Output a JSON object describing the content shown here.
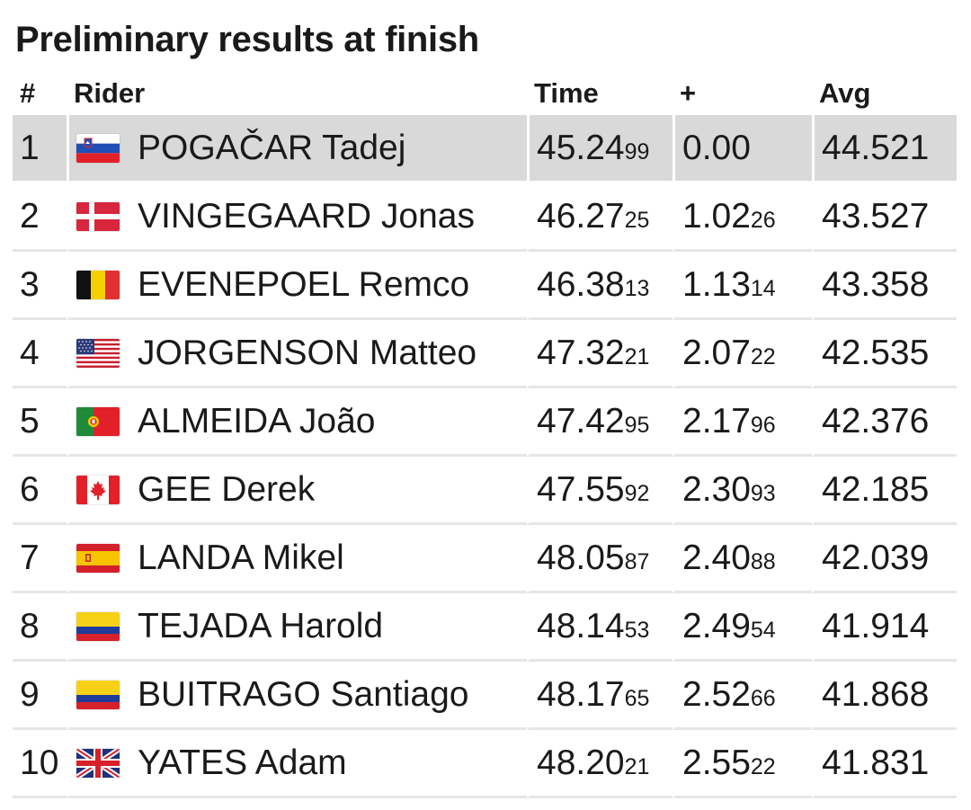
{
  "title": "Preliminary results at finish",
  "columns": {
    "rank": "#",
    "rider": "Rider",
    "time": "Time",
    "gap": "+",
    "avg": "Avg"
  },
  "rows": [
    {
      "rank": "1",
      "flag": "slovenia-flag-icon",
      "name": "POGAČAR Tadej",
      "time_main": "45.24",
      "time_dec": "99",
      "gap_main": "0.00",
      "gap_dec": "",
      "avg": "44.521",
      "highlight": true
    },
    {
      "rank": "2",
      "flag": "denmark-flag-icon",
      "name": "VINGEGAARD Jonas",
      "time_main": "46.27",
      "time_dec": "25",
      "gap_main": "1.02",
      "gap_dec": "26",
      "avg": "43.527"
    },
    {
      "rank": "3",
      "flag": "belgium-flag-icon",
      "name": "EVENEPOEL Remco",
      "time_main": "46.38",
      "time_dec": "13",
      "gap_main": "1.13",
      "gap_dec": "14",
      "avg": "43.358"
    },
    {
      "rank": "4",
      "flag": "usa-flag-icon",
      "name": "JORGENSON Matteo",
      "time_main": "47.32",
      "time_dec": "21",
      "gap_main": "2.07",
      "gap_dec": "22",
      "avg": "42.535"
    },
    {
      "rank": "5",
      "flag": "portugal-flag-icon",
      "name": "ALMEIDA João",
      "time_main": "47.42",
      "time_dec": "95",
      "gap_main": "2.17",
      "gap_dec": "96",
      "avg": "42.376"
    },
    {
      "rank": "6",
      "flag": "canada-flag-icon",
      "name": "GEE Derek",
      "time_main": "47.55",
      "time_dec": "92",
      "gap_main": "2.30",
      "gap_dec": "93",
      "avg": "42.185"
    },
    {
      "rank": "7",
      "flag": "spain-flag-icon",
      "name": "LANDA Mikel",
      "time_main": "48.05",
      "time_dec": "87",
      "gap_main": "2.40",
      "gap_dec": "88",
      "avg": "42.039"
    },
    {
      "rank": "8",
      "flag": "colombia-flag-icon",
      "name": "TEJADA Harold",
      "time_main": "48.14",
      "time_dec": "53",
      "gap_main": "2.49",
      "gap_dec": "54",
      "avg": "41.914"
    },
    {
      "rank": "9",
      "flag": "colombia-flag-icon",
      "name": "BUITRAGO Santiago",
      "time_main": "48.17",
      "time_dec": "65",
      "gap_main": "2.52",
      "gap_dec": "66",
      "avg": "41.868"
    },
    {
      "rank": "10",
      "flag": "uk-flag-icon",
      "name": "YATES Adam",
      "time_main": "48.20",
      "time_dec": "21",
      "gap_main": "2.55",
      "gap_dec": "22",
      "avg": "41.831"
    }
  ],
  "colors": {
    "highlight_row": "#d9d9d9",
    "row_divider": "#e6e6e6",
    "text": "#1a1a1a"
  }
}
